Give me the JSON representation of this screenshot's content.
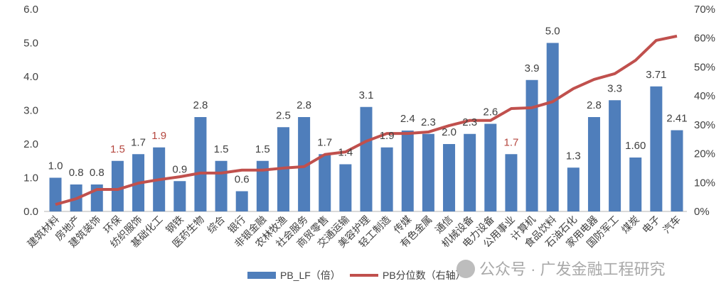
{
  "chart_data": {
    "type": "bar+line",
    "categories": [
      "建筑材料",
      "房地产",
      "建筑装饰",
      "环保",
      "纺织服饰",
      "基础化工",
      "钢铁",
      "医药生物",
      "综合",
      "银行",
      "非银金融",
      "农林牧渔",
      "社会服务",
      "商贸零售",
      "交通运输",
      "美容护理",
      "轻工制造",
      "传媒",
      "有色金属",
      "通信",
      "机械设备",
      "电力设备",
      "公用事业",
      "计算机",
      "食品饮料",
      "石油石化",
      "家用电器",
      "国防军工",
      "煤炭",
      "电子",
      "汽车"
    ],
    "series": [
      {
        "name": "PB_LF（倍）",
        "type": "bar",
        "axis": "left",
        "color": "#4F7EBB",
        "values": [
          1.0,
          0.8,
          0.8,
          1.5,
          1.7,
          1.9,
          0.9,
          2.8,
          1.5,
          0.6,
          1.5,
          2.5,
          2.8,
          1.7,
          1.4,
          3.1,
          1.9,
          2.4,
          2.3,
          2.0,
          2.3,
          2.6,
          1.7,
          3.9,
          5.0,
          1.3,
          2.8,
          3.3,
          1.6,
          3.71,
          2.41
        ],
        "labels": [
          "1.0",
          "0.8",
          "0.8",
          "1.5",
          "1.7",
          "1.9",
          "0.9",
          "2.8",
          "1.5",
          "0.6",
          "1.5",
          "2.5",
          "2.8",
          "1.7",
          "1.4",
          "3.1",
          "1.9",
          "2.4",
          "2.3",
          "2.0",
          "2.3",
          "2.6",
          "1.7",
          "3.9",
          "5.0",
          "1.3",
          "2.8",
          "3.3",
          "1.60",
          "3.71",
          "2.41"
        ],
        "label_colors_highlight": {
          "indices": [
            3,
            5,
            22
          ],
          "color": "#B5473F"
        }
      },
      {
        "name": "PB分位数（右轴）",
        "type": "line",
        "axis": "right",
        "color": "#C0504D",
        "values": [
          2.4,
          4.4,
          7.6,
          7.6,
          9.8,
          11.0,
          12.0,
          13.3,
          13.3,
          14.3,
          14.3,
          15.0,
          15.5,
          19.7,
          20.6,
          24.3,
          27.0,
          27.0,
          27.5,
          29.7,
          31.5,
          31.5,
          35.6,
          35.9,
          38.0,
          42.5,
          45.7,
          47.7,
          52.3,
          59.2,
          60.7
        ]
      }
    ],
    "y_left": {
      "min": 0,
      "max": 6,
      "ticks": [
        "0.0",
        "1.0",
        "2.0",
        "3.0",
        "4.0",
        "5.0",
        "6.0"
      ]
    },
    "y_right": {
      "min": 0,
      "max": 70,
      "ticks": [
        "0%",
        "10%",
        "20%",
        "30%",
        "40%",
        "50%",
        "60%",
        "70%"
      ]
    },
    "grid": false,
    "legend_position": "bottom"
  },
  "watermark": "公众号 · 广发金融工程研究"
}
